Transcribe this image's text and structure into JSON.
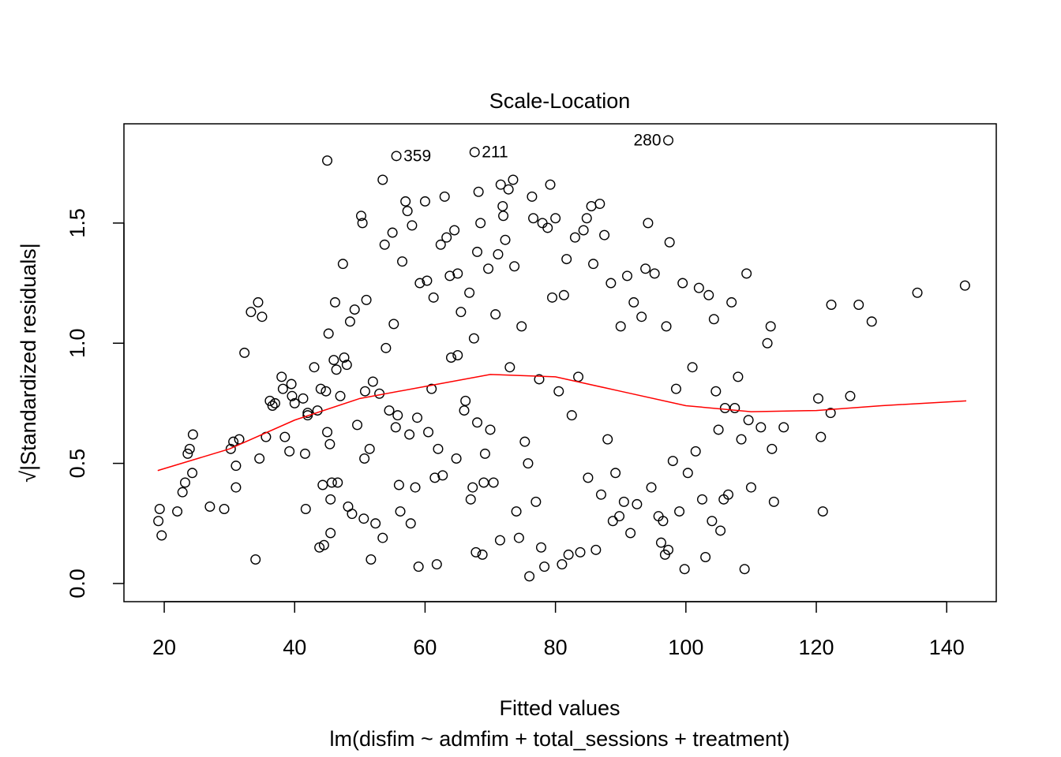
{
  "chart_data": {
    "type": "scatter",
    "title": "Scale-Location",
    "xlabel": "Fitted values",
    "subtitle": "lm(disfim ~ admfim + total_sessions + treatment)",
    "ylabel": "√|Standardized residuals|",
    "color": "#000000",
    "x": [
      19.1,
      19.3,
      19.6,
      22,
      22.8,
      23.2,
      23.6,
      23.9,
      24.4,
      24.3,
      27,
      29.2,
      30.2,
      30.6,
      31,
      31,
      31.5,
      32.3,
      33.3,
      34,
      34.4,
      34.6,
      35,
      35.6,
      36.2,
      36.6,
      37,
      38,
      38.2,
      38.5,
      39.2,
      39.5,
      39.6,
      40,
      41.3,
      41.6,
      41.7,
      42,
      42,
      43,
      43.5,
      43.8,
      44,
      44.3,
      44.5,
      44.8,
      45,
      45,
      45.2,
      45.4,
      45.5,
      45.5,
      45.7,
      46,
      46.2,
      46.4,
      46.6,
      47,
      47.4,
      47.6,
      48,
      48.2,
      48.5,
      48.8,
      49.2,
      49.6,
      50.2,
      50.4,
      50.6,
      50.7,
      50.8,
      51,
      51.5,
      51.7,
      52,
      52.4,
      53,
      53.5,
      53.5,
      53.8,
      54,
      54.5,
      55,
      55.2,
      55.5,
      55.8,
      56,
      56.2,
      56.5,
      57,
      57.3,
      57.6,
      57.8,
      58,
      58.5,
      58.8,
      59,
      59.2,
      60,
      60.3,
      60.5,
      61,
      61.3,
      61.5,
      61.8,
      62,
      62.4,
      62.7,
      63,
      63.3,
      63.8,
      64,
      64.5,
      64.8,
      65,
      65,
      65.5,
      66,
      66.2,
      66.8,
      67,
      67.3,
      67.5,
      67.8,
      68,
      68,
      68.2,
      68.5,
      68.8,
      69,
      69.2,
      69.7,
      70,
      70.5,
      70.8,
      71.2,
      71.5,
      71.6,
      71.9,
      72,
      72.3,
      72.8,
      73,
      73.5,
      73.7,
      74,
      74.4,
      74.8,
      75.3,
      75.8,
      76,
      76.4,
      76.6,
      77,
      77.5,
      77.8,
      78,
      78.3,
      78.8,
      79.2,
      79.5,
      80,
      80.5,
      81,
      81.3,
      81.7,
      82,
      82.5,
      83,
      83.5,
      83.8,
      84.3,
      84.8,
      85,
      85.5,
      85.8,
      86.2,
      86.8,
      87,
      87.5,
      88,
      88.5,
      88.8,
      89.2,
      89.8,
      90,
      90.5,
      91,
      91.5,
      92,
      92.5,
      93.2,
      93.8,
      94.2,
      94.7,
      95.2,
      95.8,
      96.2,
      96.5,
      96.8,
      97,
      97.3,
      97.5,
      98,
      98.5,
      99,
      99.5,
      99.8,
      100.3,
      101,
      101.5,
      102,
      102.5,
      103,
      103.5,
      104,
      104.3,
      104.6,
      105,
      105.3,
      105.8,
      106,
      106.5,
      107,
      107.5,
      108,
      108.5,
      109,
      109.3,
      109.6,
      110,
      111.5,
      112.5,
      113,
      113.5,
      113.2,
      115,
      120.3,
      120.7,
      121,
      122.2,
      122.3,
      125.2,
      126.5,
      128.5,
      135.5,
      142.8,
      55.6,
      67.6,
      97.3
    ],
    "values": [
      0.26,
      0.31,
      0.2,
      0.3,
      0.38,
      0.42,
      0.54,
      0.56,
      0.62,
      0.46,
      0.32,
      0.31,
      0.56,
      0.59,
      0.49,
      0.4,
      0.6,
      0.96,
      1.13,
      0.1,
      1.17,
      0.52,
      1.11,
      0.61,
      0.76,
      0.74,
      0.75,
      0.86,
      0.81,
      0.61,
      0.55,
      0.83,
      0.78,
      0.75,
      0.77,
      0.54,
      0.31,
      0.71,
      0.7,
      0.9,
      0.72,
      0.15,
      0.81,
      0.41,
      0.16,
      0.8,
      0.63,
      1.76,
      1.04,
      0.58,
      0.21,
      0.35,
      0.42,
      0.93,
      1.17,
      0.89,
      0.42,
      0.78,
      1.33,
      0.94,
      0.91,
      0.32,
      1.09,
      0.29,
      1.14,
      0.66,
      1.53,
      1.5,
      0.27,
      0.52,
      0.8,
      1.18,
      0.56,
      0.1,
      0.84,
      0.25,
      0.79,
      1.68,
      0.19,
      1.41,
      0.98,
      0.72,
      1.46,
      1.08,
      0.65,
      0.7,
      0.41,
      0.3,
      1.34,
      1.59,
      1.55,
      0.62,
      0.25,
      1.49,
      0.4,
      0.69,
      0.07,
      1.25,
      1.59,
      1.26,
      0.63,
      0.81,
      1.19,
      0.44,
      0.08,
      0.56,
      1.41,
      0.45,
      1.61,
      1.44,
      1.28,
      0.94,
      1.47,
      0.52,
      1.29,
      0.95,
      1.13,
      0.72,
      0.76,
      1.21,
      0.35,
      0.4,
      1.02,
      0.13,
      1.38,
      0.67,
      1.63,
      1.5,
      0.12,
      0.42,
      0.54,
      1.31,
      0.64,
      0.42,
      1.12,
      1.37,
      0.18,
      1.66,
      1.57,
      1.53,
      1.43,
      1.64,
      0.9,
      1.68,
      1.32,
      0.3,
      0.19,
      1.07,
      0.59,
      0.5,
      0.03,
      1.61,
      1.52,
      0.34,
      0.85,
      0.15,
      1.5,
      0.07,
      1.48,
      1.66,
      1.19,
      1.52,
      0.8,
      0.08,
      1.2,
      1.35,
      0.12,
      0.7,
      1.44,
      0.86,
      0.13,
      1.47,
      1.52,
      0.44,
      1.57,
      1.33,
      0.14,
      1.58,
      0.37,
      1.45,
      0.6,
      1.25,
      0.26,
      0.46,
      0.28,
      1.07,
      0.34,
      1.28,
      0.21,
      1.17,
      0.33,
      1.11,
      1.31,
      1.5,
      0.4,
      1.29,
      0.28,
      0.17,
      0.26,
      0.12,
      1.07,
      0.14,
      1.42,
      0.51,
      0.81,
      0.3,
      1.25,
      0.06,
      0.46,
      0.9,
      0.55,
      1.23,
      0.35,
      0.11,
      1.2,
      0.26,
      1.1,
      0.8,
      0.64,
      0.22,
      0.35,
      0.73,
      0.37,
      1.17,
      0.73,
      0.86,
      0.6,
      0.06,
      1.29,
      0.68,
      0.4,
      0.65,
      1.0,
      1.07,
      0.34,
      0.56,
      0.65,
      0.77,
      0.61,
      0.3,
      0.71,
      1.16,
      0.78,
      1.16,
      1.09,
      1.21,
      1.24,
      1.779,
      1.795,
      1.844
    ],
    "smooth": {
      "color": "#ff0000",
      "x": [
        19,
        30,
        40,
        50,
        60,
        70,
        80,
        90,
        100,
        110,
        120,
        130,
        143
      ],
      "values": [
        0.47,
        0.56,
        0.68,
        0.77,
        0.82,
        0.87,
        0.86,
        0.8,
        0.74,
        0.715,
        0.72,
        0.74,
        0.76
      ]
    },
    "annotations": [
      {
        "text": "359",
        "x": 55.6,
        "y": 1.779,
        "position": "right"
      },
      {
        "text": "211",
        "x": 67.6,
        "y": 1.795,
        "position": "right"
      },
      {
        "text": "280",
        "x": 97.3,
        "y": 1.844,
        "position": "left"
      }
    ],
    "xlim": [
      13.82,
      147.6
    ],
    "ylim": [
      -0.0755,
      1.913
    ],
    "xticks": [
      20,
      40,
      60,
      80,
      100,
      120,
      140
    ],
    "yticks": [
      {
        "value": 0,
        "label": "0.0"
      },
      0.5,
      {
        "value": 1,
        "label": "1.0"
      },
      1.5
    ]
  }
}
